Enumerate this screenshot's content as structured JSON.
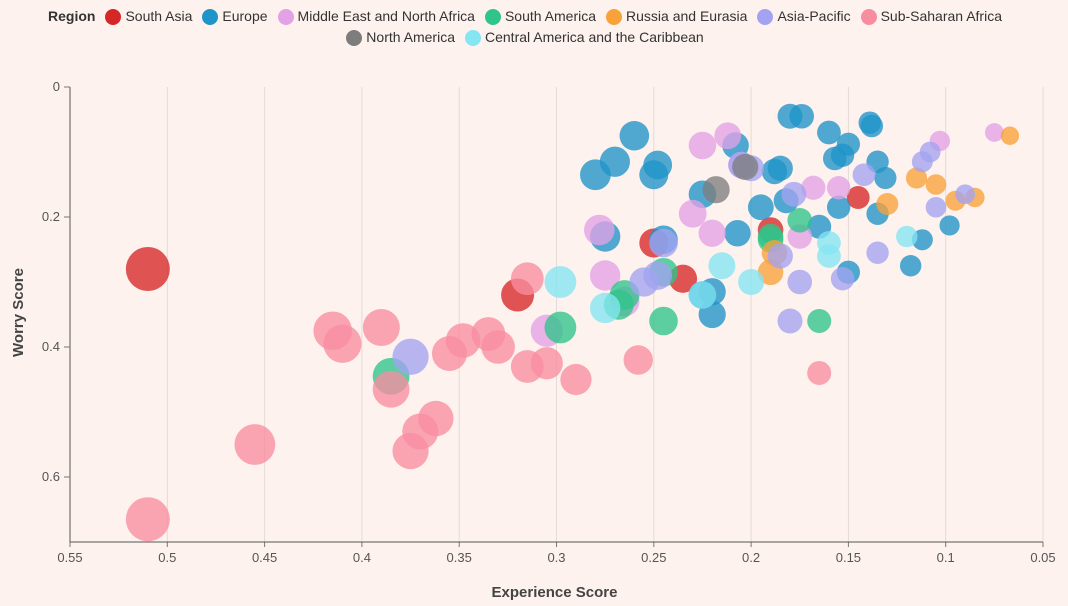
{
  "chart_data": {
    "type": "scatter",
    "xlabel": "Experience Score",
    "ylabel": "Worry Score",
    "xlim": [
      0.55,
      0.05
    ],
    "ylim": [
      0,
      0.7
    ],
    "x_reversed": true,
    "y_reversed": true,
    "x_ticks": [
      "0.55",
      "0.5",
      "0.45",
      "0.4",
      "0.35",
      "0.3",
      "0.25",
      "0.2",
      "0.15",
      "0.1",
      "0.05"
    ],
    "y_ticks": [
      "0",
      "0.2",
      "0.4",
      "0.6"
    ],
    "grid": "vertical",
    "legend": {
      "title": "Region",
      "placement": "top",
      "items": [
        {
          "name": "South Asia",
          "color": "#d62728"
        },
        {
          "name": "Europe",
          "color": "#1f94c8"
        },
        {
          "name": "Middle East and North Africa",
          "color": "#e3a1e6"
        },
        {
          "name": "South America",
          "color": "#2fc48a"
        },
        {
          "name": "Russia and Eurasia",
          "color": "#f8a23a"
        },
        {
          "name": "Asia-Pacific",
          "color": "#a3a3f1"
        },
        {
          "name": "Sub-Saharan Africa",
          "color": "#f98da0"
        },
        {
          "name": "North America",
          "color": "#7d7d7d"
        },
        {
          "name": "Central America and the Caribbean",
          "color": "#84e6f2"
        }
      ]
    },
    "series": [
      {
        "name": "South Asia",
        "color": "#d62728",
        "points": [
          {
            "x": 0.51,
            "y": 0.28
          },
          {
            "x": 0.32,
            "y": 0.32
          },
          {
            "x": 0.25,
            "y": 0.24
          },
          {
            "x": 0.235,
            "y": 0.295
          },
          {
            "x": 0.19,
            "y": 0.22
          },
          {
            "x": 0.145,
            "y": 0.17
          }
        ]
      },
      {
        "name": "Europe",
        "color": "#1f94c8",
        "points": [
          {
            "x": 0.28,
            "y": 0.135
          },
          {
            "x": 0.27,
            "y": 0.115
          },
          {
            "x": 0.26,
            "y": 0.075
          },
          {
            "x": 0.25,
            "y": 0.135
          },
          {
            "x": 0.248,
            "y": 0.12
          },
          {
            "x": 0.245,
            "y": 0.235
          },
          {
            "x": 0.225,
            "y": 0.165
          },
          {
            "x": 0.225,
            "y": 0.32
          },
          {
            "x": 0.22,
            "y": 0.315
          },
          {
            "x": 0.22,
            "y": 0.35
          },
          {
            "x": 0.275,
            "y": 0.23
          },
          {
            "x": 0.208,
            "y": 0.09
          },
          {
            "x": 0.207,
            "y": 0.225
          },
          {
            "x": 0.195,
            "y": 0.185
          },
          {
            "x": 0.188,
            "y": 0.13
          },
          {
            "x": 0.185,
            "y": 0.125
          },
          {
            "x": 0.182,
            "y": 0.175
          },
          {
            "x": 0.18,
            "y": 0.045
          },
          {
            "x": 0.174,
            "y": 0.045
          },
          {
            "x": 0.165,
            "y": 0.215
          },
          {
            "x": 0.16,
            "y": 0.07
          },
          {
            "x": 0.157,
            "y": 0.11
          },
          {
            "x": 0.155,
            "y": 0.185
          },
          {
            "x": 0.153,
            "y": 0.105
          },
          {
            "x": 0.15,
            "y": 0.088
          },
          {
            "x": 0.15,
            "y": 0.285
          },
          {
            "x": 0.139,
            "y": 0.055
          },
          {
            "x": 0.138,
            "y": 0.06
          },
          {
            "x": 0.135,
            "y": 0.195
          },
          {
            "x": 0.135,
            "y": 0.115
          },
          {
            "x": 0.131,
            "y": 0.14
          },
          {
            "x": 0.118,
            "y": 0.275
          },
          {
            "x": 0.112,
            "y": 0.235
          },
          {
            "x": 0.098,
            "y": 0.213
          }
        ]
      },
      {
        "name": "Middle East and North Africa",
        "color": "#e3a1e6",
        "points": [
          {
            "x": 0.278,
            "y": 0.22
          },
          {
            "x": 0.275,
            "y": 0.29
          },
          {
            "x": 0.305,
            "y": 0.375
          },
          {
            "x": 0.265,
            "y": 0.33
          },
          {
            "x": 0.23,
            "y": 0.195
          },
          {
            "x": 0.225,
            "y": 0.09
          },
          {
            "x": 0.22,
            "y": 0.225
          },
          {
            "x": 0.212,
            "y": 0.075
          },
          {
            "x": 0.205,
            "y": 0.12
          },
          {
            "x": 0.175,
            "y": 0.23
          },
          {
            "x": 0.168,
            "y": 0.155
          },
          {
            "x": 0.155,
            "y": 0.155
          },
          {
            "x": 0.103,
            "y": 0.083
          },
          {
            "x": 0.075,
            "y": 0.07
          }
        ]
      },
      {
        "name": "South America",
        "color": "#2fc48a",
        "points": [
          {
            "x": 0.385,
            "y": 0.445
          },
          {
            "x": 0.298,
            "y": 0.37
          },
          {
            "x": 0.268,
            "y": 0.335
          },
          {
            "x": 0.265,
            "y": 0.32
          },
          {
            "x": 0.245,
            "y": 0.36
          },
          {
            "x": 0.245,
            "y": 0.285
          },
          {
            "x": 0.19,
            "y": 0.235
          },
          {
            "x": 0.19,
            "y": 0.23
          },
          {
            "x": 0.175,
            "y": 0.205
          },
          {
            "x": 0.165,
            "y": 0.36
          }
        ]
      },
      {
        "name": "Russia and Eurasia",
        "color": "#f8a23a",
        "points": [
          {
            "x": 0.19,
            "y": 0.285
          },
          {
            "x": 0.188,
            "y": 0.255
          },
          {
            "x": 0.13,
            "y": 0.18
          },
          {
            "x": 0.115,
            "y": 0.14
          },
          {
            "x": 0.105,
            "y": 0.15
          },
          {
            "x": 0.095,
            "y": 0.175
          },
          {
            "x": 0.085,
            "y": 0.17
          },
          {
            "x": 0.067,
            "y": 0.075
          }
        ]
      },
      {
        "name": "Asia-Pacific",
        "color": "#a3a3f1",
        "points": [
          {
            "x": 0.375,
            "y": 0.415
          },
          {
            "x": 0.255,
            "y": 0.3
          },
          {
            "x": 0.248,
            "y": 0.29
          },
          {
            "x": 0.245,
            "y": 0.24
          },
          {
            "x": 0.205,
            "y": 0.12
          },
          {
            "x": 0.2,
            "y": 0.125
          },
          {
            "x": 0.185,
            "y": 0.26
          },
          {
            "x": 0.18,
            "y": 0.36
          },
          {
            "x": 0.178,
            "y": 0.165
          },
          {
            "x": 0.175,
            "y": 0.3
          },
          {
            "x": 0.153,
            "y": 0.295
          },
          {
            "x": 0.142,
            "y": 0.135
          },
          {
            "x": 0.135,
            "y": 0.255
          },
          {
            "x": 0.112,
            "y": 0.115
          },
          {
            "x": 0.108,
            "y": 0.1
          },
          {
            "x": 0.105,
            "y": 0.185
          },
          {
            "x": 0.09,
            "y": 0.165
          }
        ]
      },
      {
        "name": "Sub-Saharan Africa",
        "color": "#f98da0",
        "points": [
          {
            "x": 0.51,
            "y": 0.665
          },
          {
            "x": 0.455,
            "y": 0.55
          },
          {
            "x": 0.415,
            "y": 0.375
          },
          {
            "x": 0.41,
            "y": 0.395
          },
          {
            "x": 0.39,
            "y": 0.37
          },
          {
            "x": 0.385,
            "y": 0.465
          },
          {
            "x": 0.375,
            "y": 0.56
          },
          {
            "x": 0.37,
            "y": 0.53
          },
          {
            "x": 0.362,
            "y": 0.51
          },
          {
            "x": 0.355,
            "y": 0.41
          },
          {
            "x": 0.348,
            "y": 0.39
          },
          {
            "x": 0.335,
            "y": 0.38
          },
          {
            "x": 0.33,
            "y": 0.4
          },
          {
            "x": 0.315,
            "y": 0.295
          },
          {
            "x": 0.315,
            "y": 0.43
          },
          {
            "x": 0.305,
            "y": 0.425
          },
          {
            "x": 0.29,
            "y": 0.45
          },
          {
            "x": 0.258,
            "y": 0.42
          },
          {
            "x": 0.165,
            "y": 0.44
          }
        ]
      },
      {
        "name": "North America",
        "color": "#7d7d7d",
        "points": [
          {
            "x": 0.218,
            "y": 0.158
          },
          {
            "x": 0.203,
            "y": 0.123
          }
        ]
      },
      {
        "name": "Central America and the Caribbean",
        "color": "#84e6f2",
        "points": [
          {
            "x": 0.298,
            "y": 0.3
          },
          {
            "x": 0.275,
            "y": 0.34
          },
          {
            "x": 0.225,
            "y": 0.32
          },
          {
            "x": 0.215,
            "y": 0.275
          },
          {
            "x": 0.2,
            "y": 0.3
          },
          {
            "x": 0.16,
            "y": 0.24
          },
          {
            "x": 0.16,
            "y": 0.26
          },
          {
            "x": 0.12,
            "y": 0.23
          }
        ]
      }
    ]
  }
}
